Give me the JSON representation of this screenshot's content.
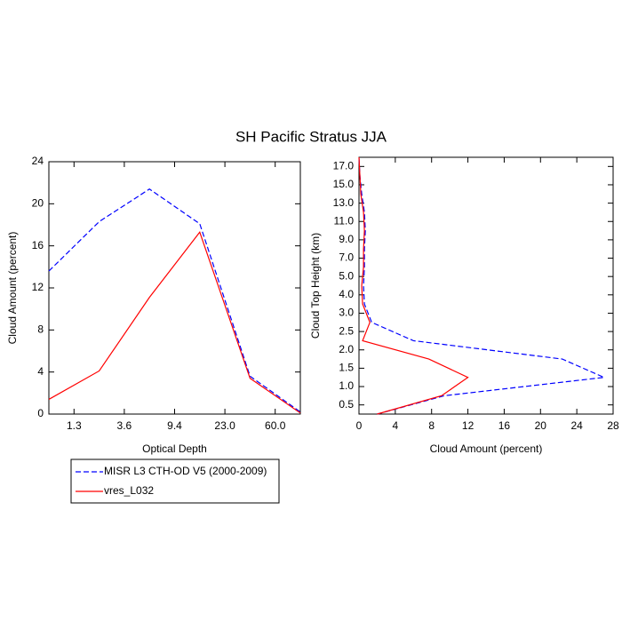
{
  "chart_data": [
    {
      "type": "line",
      "title": "SH Pacific Stratus JJA",
      "xlabel": "Optical Depth",
      "ylabel": "Cloud Amount (percent)",
      "x": [
        0,
        1,
        2,
        3,
        4,
        5
      ],
      "xlim": [
        0,
        5
      ],
      "xticks": [
        {
          "value": 0.5,
          "label": "1.3"
        },
        {
          "value": 1.5,
          "label": "3.6"
        },
        {
          "value": 2.5,
          "label": "9.4"
        },
        {
          "value": 3.5,
          "label": "23.0"
        },
        {
          "value": 4.5,
          "label": "60.0"
        }
      ],
      "ylim": [
        0,
        24
      ],
      "yticks": [
        0,
        4,
        8,
        12,
        16,
        20,
        24
      ],
      "series": [
        {
          "name": "MISR L3 CTH-OD V5 (2000-2009)",
          "color": "#0000ff",
          "style": "dashed",
          "values": [
            13.6,
            18.3,
            21.4,
            18.1,
            3.6,
            0.2
          ]
        },
        {
          "name": "vres_L032",
          "color": "#ff0000",
          "style": "solid",
          "values": [
            1.4,
            4.1,
            11.1,
            17.3,
            3.4,
            0.1
          ]
        }
      ]
    },
    {
      "type": "line",
      "orientation": "horizontal",
      "xlabel": "Cloud Amount (percent)",
      "ylabel": "Cloud Top Height (km)",
      "y": [
        0,
        1,
        2,
        3,
        4,
        5,
        6,
        7,
        8,
        9,
        10,
        11,
        12,
        13,
        14
      ],
      "ylim": [
        0,
        14
      ],
      "yticks": [
        {
          "value": 0.5,
          "label": "0.5"
        },
        {
          "value": 1.5,
          "label": "1.0"
        },
        {
          "value": 2.5,
          "label": "1.5"
        },
        {
          "value": 3.5,
          "label": "2.0"
        },
        {
          "value": 4.5,
          "label": "2.5"
        },
        {
          "value": 5.5,
          "label": "3.0"
        },
        {
          "value": 6.5,
          "label": "4.0"
        },
        {
          "value": 7.5,
          "label": "5.0"
        },
        {
          "value": 8.5,
          "label": "7.0"
        },
        {
          "value": 9.5,
          "label": "9.0"
        },
        {
          "value": 10.5,
          "label": "11.0"
        },
        {
          "value": 11.5,
          "label": "13.0"
        },
        {
          "value": 12.5,
          "label": "15.0"
        },
        {
          "value": 13.5,
          "label": "17.0"
        }
      ],
      "xlim": [
        0,
        28
      ],
      "xticks": [
        0,
        4,
        8,
        12,
        16,
        20,
        24,
        28
      ],
      "series": [
        {
          "color": "#0000ff",
          "style": "dashed",
          "values": [
            2.0,
            9.4,
            27.0,
            22.4,
            6.0,
            1.4,
            0.6,
            0.5,
            0.6,
            0.6,
            0.7,
            0.6,
            0.3,
            0.1,
            0
          ]
        },
        {
          "color": "#ff0000",
          "style": "solid",
          "values": [
            2.0,
            9.1,
            12.0,
            7.7,
            0.4,
            1.2,
            0.4,
            0.3,
            0.5,
            0.5,
            0.6,
            0.5,
            0.2,
            0.1,
            0
          ]
        }
      ]
    }
  ]
}
